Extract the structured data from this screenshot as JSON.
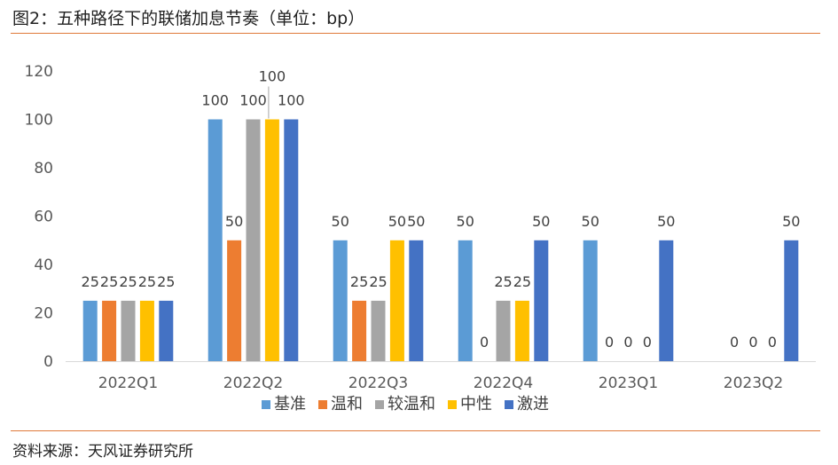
{
  "header": {
    "title": "图2：五种路径下的联储加息节奏（单位：bp）"
  },
  "footer": {
    "source": "资料来源：天风证券研究所"
  },
  "chart_data": {
    "type": "bar",
    "categories": [
      "2022Q1",
      "2022Q2",
      "2022Q3",
      "2022Q4",
      "2023Q1",
      "2023Q2"
    ],
    "series": [
      {
        "name": "基准",
        "color": "#5b9bd5",
        "values": [
          25,
          100,
          50,
          50,
          50,
          0
        ]
      },
      {
        "name": "温和",
        "color": "#ed7d31",
        "values": [
          25,
          50,
          25,
          0,
          0,
          0
        ]
      },
      {
        "name": "较温和",
        "color": "#a5a5a5",
        "values": [
          25,
          100,
          25,
          25,
          0,
          0
        ]
      },
      {
        "name": "中性",
        "color": "#ffc000",
        "values": [
          25,
          100,
          50,
          25,
          0,
          0
        ]
      },
      {
        "name": "激进",
        "color": "#4472c4",
        "values": [
          25,
          100,
          50,
          50,
          50,
          50
        ]
      }
    ],
    "data_labels": [
      [
        "25",
        "25",
        "25",
        "25",
        "25"
      ],
      [
        "100",
        "50",
        "100",
        "100",
        "100"
      ],
      [
        "50",
        "25",
        "25",
        "50",
        "50"
      ],
      [
        "50",
        "0",
        "25",
        "25",
        "50"
      ],
      [
        "50",
        "0",
        "0",
        "0",
        "50"
      ],
      [
        "",
        "0",
        "0",
        "0",
        "50"
      ]
    ],
    "yticks": [
      "0",
      "20",
      "40",
      "60",
      "80",
      "100",
      "120"
    ],
    "ylim": [
      0,
      120
    ],
    "grid": false,
    "legend_position": "bottom"
  }
}
